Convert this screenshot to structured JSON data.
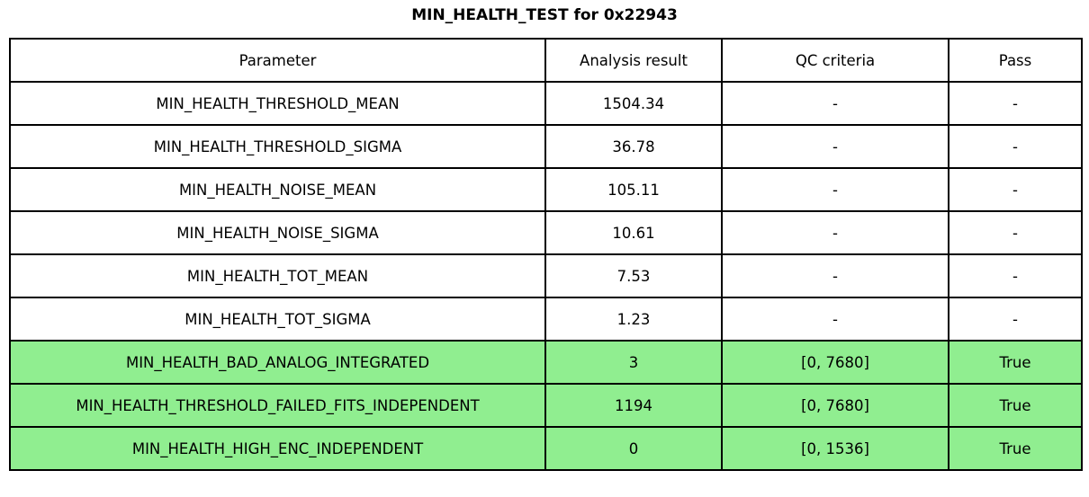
{
  "title": "MIN_HEALTH_TEST for 0x22943",
  "colors": {
    "pass_row_green": "#90ee90",
    "border": "#000000",
    "background": "#ffffff",
    "text": "#000000"
  },
  "table": {
    "headers": {
      "parameter": "Parameter",
      "result": "Analysis result",
      "qc": "QC criteria",
      "pass": "Pass"
    },
    "rows": [
      {
        "parameter": "MIN_HEALTH_THRESHOLD_MEAN",
        "result": "1504.34",
        "qc": "-",
        "pass": "-",
        "highlighted": false
      },
      {
        "parameter": "MIN_HEALTH_THRESHOLD_SIGMA",
        "result": "36.78",
        "qc": "-",
        "pass": "-",
        "highlighted": false
      },
      {
        "parameter": "MIN_HEALTH_NOISE_MEAN",
        "result": "105.11",
        "qc": "-",
        "pass": "-",
        "highlighted": false
      },
      {
        "parameter": "MIN_HEALTH_NOISE_SIGMA",
        "result": "10.61",
        "qc": "-",
        "pass": "-",
        "highlighted": false
      },
      {
        "parameter": "MIN_HEALTH_TOT_MEAN",
        "result": "7.53",
        "qc": "-",
        "pass": "-",
        "highlighted": false
      },
      {
        "parameter": "MIN_HEALTH_TOT_SIGMA",
        "result": "1.23",
        "qc": "-",
        "pass": "-",
        "highlighted": false
      },
      {
        "parameter": "MIN_HEALTH_BAD_ANALOG_INTEGRATED",
        "result": "3",
        "qc": "[0, 7680]",
        "pass": "True",
        "highlighted": true
      },
      {
        "parameter": "MIN_HEALTH_THRESHOLD_FAILED_FITS_INDEPENDENT",
        "result": "1194",
        "qc": "[0, 7680]",
        "pass": "True",
        "highlighted": true
      },
      {
        "parameter": "MIN_HEALTH_HIGH_ENC_INDEPENDENT",
        "result": "0",
        "qc": "[0, 1536]",
        "pass": "True",
        "highlighted": true
      }
    ]
  }
}
